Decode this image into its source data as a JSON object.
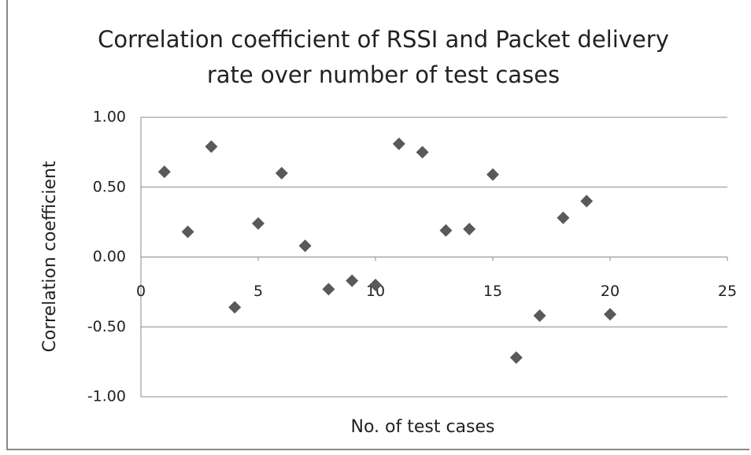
{
  "chart_data": {
    "type": "scatter",
    "title": "Correlation coefficient of RSSI and Packet delivery rate over number of test cases",
    "x_label": "No. of test cases",
    "y_label": "Correlation coefficient",
    "series": [
      {
        "name": "Correlation coefficient",
        "color": "#595959",
        "x": [
          1,
          2,
          3,
          4,
          5,
          6,
          7,
          8,
          9,
          10,
          11,
          12,
          13,
          14,
          15,
          16,
          17,
          18,
          19,
          20
        ],
        "values": [
          0.61,
          0.18,
          0.79,
          -0.36,
          0.24,
          0.6,
          0.08,
          -0.23,
          -0.17,
          -0.2,
          0.81,
          0.75,
          0.19,
          0.2,
          0.59,
          -0.72,
          -0.42,
          0.28,
          0.4,
          -0.41
        ]
      }
    ],
    "xlim": [
      0,
      25
    ],
    "xticks": [
      0,
      5,
      10,
      15,
      20,
      25
    ],
    "ylim": [
      -1,
      1
    ],
    "yticks": [
      {
        "value": -1,
        "label": "-1.00"
      },
      {
        "value": -0.5,
        "label": "-0.50"
      },
      {
        "value": 0,
        "label": "0.00"
      },
      {
        "value": 0.5,
        "label": "0.50"
      },
      {
        "value": 1,
        "label": "1.00"
      }
    ],
    "grid": true
  }
}
